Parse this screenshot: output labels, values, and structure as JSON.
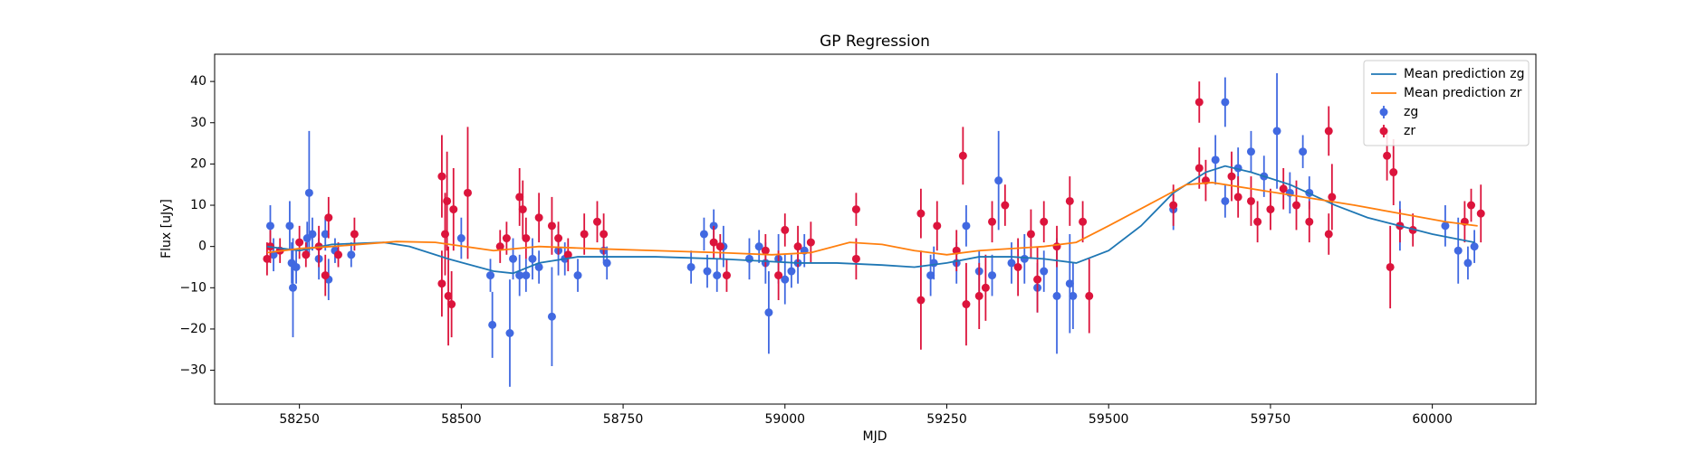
{
  "chart_data": {
    "type": "scatter",
    "title": "GP Regression",
    "x_label": "MJD",
    "y_label": "Flux [uJy]",
    "xlim": [
      58119,
      60160
    ],
    "ylim": [
      -38.2,
      46.6
    ],
    "xticks": [
      58250,
      58500,
      58750,
      59000,
      59250,
      59500,
      59750,
      60000
    ],
    "yticks": [
      {
        "value": -30,
        "label": "−30"
      },
      {
        "value": -20,
        "label": "−20"
      },
      {
        "value": -10,
        "label": "−10"
      },
      0,
      10,
      20,
      30,
      40
    ],
    "legend": "upper right",
    "lines": [
      {
        "name": "Mean prediction zg",
        "color": "#1f77b4",
        "x": [
          58200,
          58250,
          58300,
          58380,
          58420,
          58480,
          58550,
          58580,
          58620,
          58680,
          58800,
          58900,
          58960,
          59020,
          59080,
          59150,
          59200,
          59250,
          59300,
          59350,
          59400,
          59450,
          59500,
          59550,
          59600,
          59650,
          59680,
          59720,
          59780,
          59850,
          59900,
          59950,
          60000,
          60065
        ],
        "values": [
          0,
          -1,
          0.5,
          1,
          0,
          -3,
          -6,
          -6.5,
          -4,
          -2.5,
          -2.5,
          -3,
          -3.5,
          -4,
          -4,
          -4.5,
          -5,
          -4,
          -2.5,
          -2.5,
          -3,
          -4,
          -1,
          5,
          13,
          18,
          19.5,
          18,
          15,
          10,
          7,
          5,
          3,
          1
        ]
      },
      {
        "name": "Mean prediction zr",
        "color": "#ff7f0e",
        "x": [
          58200,
          58250,
          58300,
          58400,
          58460,
          58550,
          58620,
          58700,
          58800,
          58900,
          58980,
          59040,
          59100,
          59150,
          59200,
          59250,
          59300,
          59400,
          59450,
          59500,
          59560,
          59620,
          59660,
          59720,
          59800,
          59880,
          59950,
          60020,
          60070
        ],
        "values": [
          -1.5,
          -0.5,
          0,
          1.2,
          1,
          -1,
          0,
          -0.5,
          -1,
          -1.5,
          -2,
          -1.5,
          1,
          0.5,
          -1,
          -2,
          -1,
          0,
          1,
          5,
          10,
          15,
          15.5,
          14,
          12,
          10,
          8,
          6,
          5
        ]
      }
    ],
    "series": [
      {
        "name": "zg",
        "color": "#4169e1",
        "x": [
          58205,
          58210,
          58235,
          58238,
          58240,
          58245,
          58262,
          58265,
          58270,
          58280,
          58290,
          58295,
          58305,
          58330,
          58500,
          58545,
          58548,
          58575,
          58580,
          58590,
          58600,
          58610,
          58620,
          58640,
          58650,
          58660,
          58680,
          58720,
          58725,
          58855,
          58875,
          58880,
          58890,
          58895,
          58905,
          58945,
          58960,
          58970,
          58975,
          58990,
          59000,
          59010,
          59020,
          59030,
          59225,
          59230,
          59265,
          59280,
          59300,
          59320,
          59330,
          59350,
          59370,
          59390,
          59400,
          59420,
          59440,
          59445,
          59600,
          59665,
          59680,
          59680,
          59700,
          59720,
          59740,
          59760,
          59780,
          59800,
          59810,
          59950,
          60020,
          60040,
          60055,
          60065
        ],
        "values": [
          5,
          -2,
          5,
          -4,
          -10,
          -5,
          2,
          13,
          3,
          -3,
          3,
          -8,
          -1,
          -2,
          2,
          -7,
          -19,
          -21,
          -3,
          -7,
          -7,
          -3,
          -5,
          -17,
          -1,
          -3,
          -7,
          -1,
          -4,
          -5,
          3,
          -6,
          5,
          -7,
          0,
          -3,
          0,
          -4,
          -16,
          -3,
          -8,
          -6,
          -4,
          -1,
          -7,
          -4,
          -4,
          5,
          -6,
          -7,
          16,
          -4,
          -3,
          -10,
          -6,
          -12,
          -9,
          -12,
          9,
          21,
          35,
          11,
          19,
          23,
          17,
          28,
          13,
          23,
          13,
          5,
          5,
          -1,
          -4,
          0
        ],
        "errors": [
          5,
          4,
          6,
          5,
          12,
          4,
          4,
          15,
          4,
          5,
          4,
          5,
          3,
          3,
          5,
          4,
          8,
          13,
          5,
          5,
          4,
          5,
          4,
          12,
          6,
          4,
          4,
          3,
          4,
          4,
          4,
          4,
          4,
          4,
          5,
          5,
          4,
          5,
          10,
          6,
          6,
          4,
          5,
          4,
          5,
          4,
          5,
          5,
          5,
          5,
          12,
          5,
          6,
          6,
          5,
          14,
          12,
          8,
          5,
          6,
          6,
          4,
          5,
          5,
          5,
          14,
          5,
          4,
          4,
          6,
          5,
          8,
          4,
          4
        ]
      },
      {
        "name": "zr",
        "color": "#dc143c",
        "x": [
          58200,
          58205,
          58220,
          58250,
          58260,
          58280,
          58290,
          58295,
          58310,
          58335,
          58470,
          58470,
          58475,
          58478,
          58480,
          58485,
          58488,
          58510,
          58560,
          58570,
          58590,
          58595,
          58600,
          58620,
          58640,
          58650,
          58665,
          58690,
          58710,
          58720,
          58890,
          58900,
          58910,
          58970,
          58990,
          59000,
          59020,
          59040,
          59110,
          59110,
          59210,
          59210,
          59235,
          59265,
          59275,
          59280,
          59300,
          59310,
          59320,
          59340,
          59360,
          59380,
          59390,
          59400,
          59420,
          59440,
          59460,
          59470,
          59600,
          59640,
          59640,
          59650,
          59690,
          59700,
          59720,
          59730,
          59750,
          59770,
          59790,
          59810,
          59840,
          59840,
          59845,
          59930,
          59935,
          59940,
          59950,
          59970,
          60050,
          60060,
          60075
        ],
        "values": [
          -3,
          0,
          -1,
          1,
          -2,
          0,
          -7,
          7,
          -2,
          3,
          -9,
          17,
          3,
          11,
          -12,
          -14,
          9,
          13,
          0,
          2,
          12,
          9,
          2,
          7,
          5,
          2,
          -2,
          3,
          6,
          3,
          1,
          0,
          -7,
          -1,
          -7,
          4,
          0,
          1,
          9,
          -3,
          8,
          -13,
          5,
          -1,
          22,
          -14,
          -12,
          -10,
          6,
          10,
          -5,
          3,
          -8,
          6,
          0,
          11,
          6,
          -12,
          10,
          35,
          19,
          16,
          17,
          12,
          11,
          6,
          9,
          14,
          10,
          6,
          28,
          3,
          12,
          22,
          -5,
          18,
          5,
          4,
          6,
          10,
          8
        ],
        "errors": [
          4,
          4,
          3,
          4,
          3,
          5,
          5,
          5,
          3,
          4,
          8,
          10,
          10,
          12,
          12,
          8,
          10,
          16,
          4,
          4,
          7,
          7,
          5,
          6,
          7,
          4,
          4,
          5,
          5,
          5,
          4,
          3,
          4,
          4,
          6,
          4,
          5,
          5,
          4,
          5,
          6,
          12,
          6,
          5,
          7,
          10,
          8,
          8,
          5,
          5,
          7,
          6,
          8,
          5,
          5,
          6,
          5,
          9,
          5,
          5,
          5,
          5,
          6,
          5,
          6,
          5,
          5,
          5,
          6,
          5,
          6,
          5,
          8,
          6,
          10,
          8,
          4,
          4,
          5,
          4,
          7
        ]
      }
    ]
  }
}
